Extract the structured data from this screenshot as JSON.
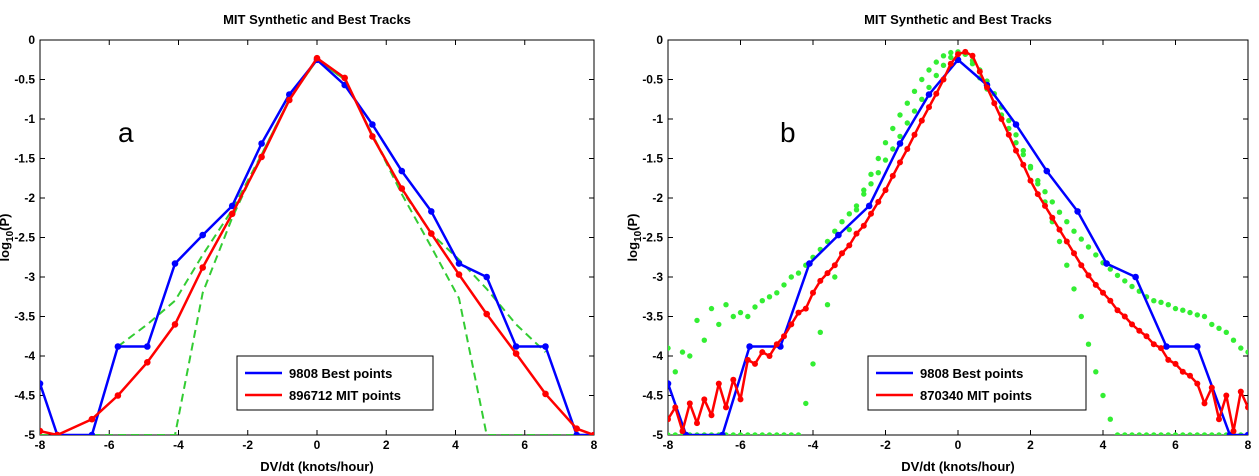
{
  "chart_data": [
    {
      "type": "line",
      "panel_label": "a",
      "title": "MIT Synthetic and Best Tracks",
      "xlabel": "DV/dt (knots/hour)",
      "ylabel_base": "log",
      "ylabel_sub": "10",
      "ylabel_tail": "(P)",
      "xlim": [
        -8,
        8
      ],
      "ylim": [
        -5,
        0
      ],
      "xticks": [
        -8,
        -6,
        -4,
        -2,
        0,
        2,
        4,
        6,
        8
      ],
      "yticks": [
        0,
        -0.5,
        -1,
        -1.5,
        -2,
        -2.5,
        -3,
        -3.5,
        -4,
        -4.5,
        -5
      ],
      "xtick_labels": [
        "-8",
        "-6",
        "-4",
        "-2",
        "0",
        "2",
        "4",
        "6",
        "8"
      ],
      "ytick_labels": [
        "0",
        "-0.5",
        "-1",
        "-1.5",
        "-2",
        "-2.5",
        "-3",
        "-3.5",
        "-4",
        "-4.5",
        "-5"
      ],
      "grid": false,
      "legend_position": "bottom-center",
      "series": [
        {
          "name": "9808 Best points",
          "color": "#0000ff",
          "style": "solid-markers",
          "x": [
            -8,
            -7.5,
            -6.5,
            -5.75,
            -4.9,
            -4.1,
            -3.3,
            -2.45,
            -1.6,
            -0.8,
            0,
            0.8,
            1.6,
            2.45,
            3.3,
            4.1,
            4.9,
            5.75,
            6.6,
            7.5,
            8
          ],
          "y": [
            -4.35,
            -5.0,
            -5.0,
            -3.88,
            -3.88,
            -2.83,
            -2.47,
            -2.1,
            -1.31,
            -0.69,
            -0.25,
            -0.57,
            -1.07,
            -1.66,
            -2.17,
            -2.83,
            -3.0,
            -3.88,
            -3.88,
            -5.0,
            -5.0
          ]
        },
        {
          "name": "896712 MIT points",
          "color": "#ff0000",
          "style": "solid-markers",
          "x": [
            -8,
            -7.5,
            -6.5,
            -5.75,
            -4.9,
            -4.1,
            -3.3,
            -2.45,
            -1.6,
            -0.8,
            0,
            0.8,
            1.6,
            2.45,
            3.3,
            4.1,
            4.9,
            5.75,
            6.6,
            7.5,
            8
          ],
          "y": [
            -4.95,
            -5.0,
            -4.8,
            -4.5,
            -4.08,
            -3.6,
            -2.88,
            -2.2,
            -1.48,
            -0.76,
            -0.23,
            -0.48,
            -1.22,
            -1.88,
            -2.45,
            -2.97,
            -3.47,
            -3.97,
            -4.48,
            -4.92,
            -5.0
          ]
        },
        {
          "color": "#33cc33",
          "style": "dashed",
          "x": [
            -8,
            -7.5,
            -6.5,
            -5.75,
            -4.9,
            -4.1,
            -3.3,
            -2.45,
            -1.6,
            -0.8,
            0,
            0.8,
            1.6,
            2.45,
            3.3,
            4.1,
            4.9,
            5.75,
            6.6,
            7.5,
            8
          ],
          "y": [
            -5.0,
            -5.0,
            -5.0,
            -5.0,
            -5.0,
            -5.0,
            -3.2,
            -2.25,
            -1.45,
            -0.75,
            -0.25,
            -0.5,
            -1.2,
            -1.95,
            -2.62,
            -3.27,
            -5.0,
            -5.0,
            -5.0,
            -5.0,
            -5.0
          ]
        },
        {
          "color": "#33cc33",
          "style": "dashed",
          "x": [
            -5.75,
            -4.9,
            -4.1,
            -3.3,
            -2.45,
            -1.6,
            -0.8,
            0,
            0.8,
            1.6,
            2.45,
            3.3,
            4.1,
            4.9,
            5.75,
            6.6
          ],
          "y": [
            -3.88,
            -3.6,
            -3.3,
            -2.72,
            -2.15,
            -1.45,
            -0.75,
            -0.25,
            -0.5,
            -1.2,
            -1.9,
            -2.45,
            -2.78,
            -3.15,
            -3.6,
            -3.95
          ]
        }
      ]
    },
    {
      "type": "line",
      "panel_label": "b",
      "title": "MIT Synthetic and Best Tracks",
      "xlabel": "DV/dt (knots/hour)",
      "ylabel_base": "log",
      "ylabel_sub": "10",
      "ylabel_tail": "(P)",
      "xlim": [
        -8,
        8
      ],
      "ylim": [
        -5,
        0
      ],
      "xticks": [
        -8,
        -6,
        -4,
        -2,
        0,
        2,
        4,
        6,
        8
      ],
      "yticks": [
        0,
        -0.5,
        -1,
        -1.5,
        -2,
        -2.5,
        -3,
        -3.5,
        -4,
        -4.5,
        -5
      ],
      "xtick_labels": [
        "-8",
        "-6",
        "-4",
        "-2",
        "0",
        "2",
        "4",
        "6",
        "8"
      ],
      "ytick_labels": [
        "0",
        "-0.5",
        "-1",
        "-1.5",
        "-2",
        "-2.5",
        "-3",
        "-3.5",
        "-4",
        "-4.5",
        "-5"
      ],
      "grid": false,
      "legend_position": "bottom-center",
      "series": [
        {
          "name": "9808 Best points",
          "color": "#0000ff",
          "style": "solid-markers",
          "x": [
            -8,
            -7.5,
            -6.5,
            -5.75,
            -4.9,
            -4.1,
            -3.3,
            -2.45,
            -1.6,
            -0.8,
            0,
            0.8,
            1.6,
            2.45,
            3.3,
            4.1,
            4.9,
            5.75,
            6.6,
            7.5,
            8
          ],
          "y": [
            -4.35,
            -5.0,
            -5.0,
            -3.88,
            -3.88,
            -2.83,
            -2.47,
            -2.1,
            -1.31,
            -0.69,
            -0.25,
            -0.57,
            -1.07,
            -1.66,
            -2.17,
            -2.83,
            -3.0,
            -3.88,
            -3.88,
            -5.0,
            -5.0
          ]
        },
        {
          "name": "870340 MIT points",
          "color": "#ff0000",
          "style": "solid-markers-dense",
          "x": [
            -8,
            -7.8,
            -7.6,
            -7.4,
            -7.2,
            -7,
            -6.8,
            -6.6,
            -6.4,
            -6.2,
            -6,
            -5.8,
            -5.6,
            -5.4,
            -5.2,
            -5,
            -4.8,
            -4.6,
            -4.4,
            -4.2,
            -4,
            -3.8,
            -3.6,
            -3.4,
            -3.2,
            -3,
            -2.8,
            -2.6,
            -2.4,
            -2.2,
            -2,
            -1.8,
            -1.6,
            -1.4,
            -1.2,
            -1,
            -0.8,
            -0.6,
            -0.4,
            -0.2,
            0,
            0.2,
            0.4,
            0.6,
            0.8,
            1,
            1.2,
            1.4,
            1.6,
            1.8,
            2,
            2.2,
            2.4,
            2.6,
            2.8,
            3,
            3.2,
            3.4,
            3.6,
            3.8,
            4,
            4.2,
            4.4,
            4.6,
            4.8,
            5,
            5.2,
            5.4,
            5.6,
            5.8,
            6,
            6.2,
            6.4,
            6.6,
            6.8,
            7,
            7.2,
            7.4,
            7.6,
            7.8,
            8
          ],
          "y": [
            -4.8,
            -4.65,
            -4.95,
            -4.6,
            -4.85,
            -4.55,
            -4.75,
            -4.35,
            -4.65,
            -4.3,
            -4.55,
            -4.05,
            -4.1,
            -3.95,
            -4.0,
            -3.85,
            -3.75,
            -3.6,
            -3.45,
            -3.4,
            -3.2,
            -3.05,
            -2.95,
            -2.85,
            -2.7,
            -2.6,
            -2.45,
            -2.35,
            -2.2,
            -2.05,
            -1.9,
            -1.72,
            -1.55,
            -1.38,
            -1.2,
            -1.02,
            -0.85,
            -0.68,
            -0.5,
            -0.3,
            -0.18,
            -0.15,
            -0.2,
            -0.4,
            -0.6,
            -0.8,
            -1.0,
            -1.2,
            -1.4,
            -1.58,
            -1.78,
            -1.95,
            -2.1,
            -2.25,
            -2.4,
            -2.55,
            -2.7,
            -2.85,
            -2.98,
            -3.1,
            -3.2,
            -3.3,
            -3.42,
            -3.5,
            -3.6,
            -3.68,
            -3.75,
            -3.85,
            -3.9,
            -4.05,
            -4.1,
            -4.2,
            -4.25,
            -4.35,
            -4.6,
            -4.4,
            -4.8,
            -4.5,
            -4.95,
            -4.45,
            -4.65
          ]
        },
        {
          "color": "#33ee33",
          "style": "markers-only",
          "x": [
            -8,
            -7.8,
            -7.6,
            -7.4,
            -7.2,
            -7,
            -6.8,
            -6.6,
            -6.4,
            -6.2,
            -6,
            -5.8,
            -5.6,
            -5.4,
            -5.2,
            -5,
            -4.8,
            -4.6,
            -4.4,
            -4.2,
            -4,
            -3.8,
            -3.6,
            -3.4,
            -3.2,
            -3,
            -2.8,
            -2.6,
            -2.4,
            -2.2,
            -2,
            -1.8,
            -1.6,
            -1.4,
            -1.2,
            -1,
            -0.8,
            -0.6,
            -0.4,
            -0.2,
            0,
            0.2,
            0.4,
            0.6,
            0.8,
            1,
            1.2,
            1.4,
            1.6,
            1.8,
            2,
            2.2,
            2.4,
            2.6,
            2.8,
            3,
            3.2,
            3.4,
            3.6,
            3.8,
            4,
            4.2,
            4.4,
            4.6,
            4.8,
            5,
            5.2,
            5.4,
            5.6,
            5.8,
            6,
            6.2,
            6.4,
            6.6,
            6.8,
            7,
            7.2,
            7.4,
            7.6,
            7.8,
            8
          ],
          "y": [
            -3.9,
            -4.2,
            -3.95,
            -4.0,
            -3.55,
            -3.8,
            -3.4,
            -3.6,
            -3.35,
            -3.5,
            -3.45,
            -3.5,
            -3.38,
            -3.3,
            -3.25,
            -3.2,
            -3.1,
            -3.0,
            -2.95,
            -2.85,
            -2.75,
            -2.65,
            -2.55,
            -2.42,
            -2.3,
            -2.2,
            -2.1,
            -1.95,
            -1.82,
            -1.68,
            -1.52,
            -1.38,
            -1.22,
            -1.05,
            -0.9,
            -0.75,
            -0.6,
            -0.45,
            -0.32,
            -0.22,
            -0.15,
            -0.18,
            -0.3,
            -0.48,
            -0.62,
            -0.8,
            -0.95,
            -1.12,
            -1.3,
            -1.45,
            -1.62,
            -1.78,
            -1.92,
            -2.05,
            -2.18,
            -2.3,
            -2.42,
            -2.52,
            -2.62,
            -2.72,
            -2.82,
            -2.9,
            -2.98,
            -3.05,
            -3.12,
            -3.18,
            -3.25,
            -3.3,
            -3.32,
            -3.35,
            -3.4,
            -3.42,
            -3.45,
            -3.48,
            -3.5,
            -3.6,
            -3.65,
            -3.7,
            -3.8,
            -3.9,
            -3.95
          ]
        },
        {
          "color": "#33ee33",
          "style": "markers-only",
          "x": [
            -8,
            -7.8,
            -7.6,
            -7.4,
            -7.2,
            -7,
            -6.8,
            -6.6,
            -6.4,
            -6.2,
            -6,
            -5.8,
            -5.6,
            -5.4,
            -5.2,
            -5,
            -4.8,
            -4.6,
            -4.4,
            -4.2,
            -4,
            -3.8,
            -3.6,
            -3.4,
            -3.2,
            -3,
            -2.8,
            -2.6,
            -2.4,
            -2.2,
            -2,
            -1.8,
            -1.6,
            -1.4,
            -1.2,
            -1,
            -0.8,
            -0.6,
            -0.4,
            -0.2,
            0,
            0.2,
            0.4,
            0.6,
            0.8,
            1,
            1.2,
            1.4,
            1.6,
            1.8,
            2,
            2.2,
            2.4,
            2.6,
            2.8,
            3,
            3.2,
            3.4,
            3.6,
            3.8,
            4,
            4.2,
            4.4,
            4.6,
            4.8,
            5,
            5.2,
            5.4,
            5.6,
            5.8,
            6,
            6.2,
            6.4,
            6.6,
            6.8,
            7,
            7.2,
            7.4,
            7.6,
            7.8,
            8
          ],
          "y": [
            -5.0,
            -5.0,
            -5.0,
            -5.0,
            -5.0,
            -5.0,
            -5.0,
            -5.0,
            -5.0,
            -5.0,
            -5.0,
            -5.0,
            -5.0,
            -5.0,
            -5.0,
            -5.0,
            -5.0,
            -5.0,
            -5.0,
            -4.6,
            -4.1,
            -3.7,
            -3.35,
            -3.0,
            -2.7,
            -2.4,
            -2.15,
            -1.9,
            -1.7,
            -1.5,
            -1.3,
            -1.12,
            -0.95,
            -0.8,
            -0.65,
            -0.5,
            -0.38,
            -0.28,
            -0.2,
            -0.16,
            -0.15,
            -0.18,
            -0.26,
            -0.38,
            -0.52,
            -0.68,
            -0.85,
            -1.02,
            -1.2,
            -1.4,
            -1.6,
            -1.82,
            -2.05,
            -2.3,
            -2.55,
            -2.85,
            -3.15,
            -3.5,
            -3.85,
            -4.2,
            -4.5,
            -4.8,
            -5.0,
            -5.0,
            -5.0,
            -5.0,
            -5.0,
            -5.0,
            -5.0,
            -5.0,
            -5.0,
            -5.0,
            -5.0,
            -5.0,
            -5.0,
            -5.0,
            -5.0,
            -5.0,
            -5.0,
            -5.0,
            -5.0
          ]
        }
      ]
    }
  ]
}
